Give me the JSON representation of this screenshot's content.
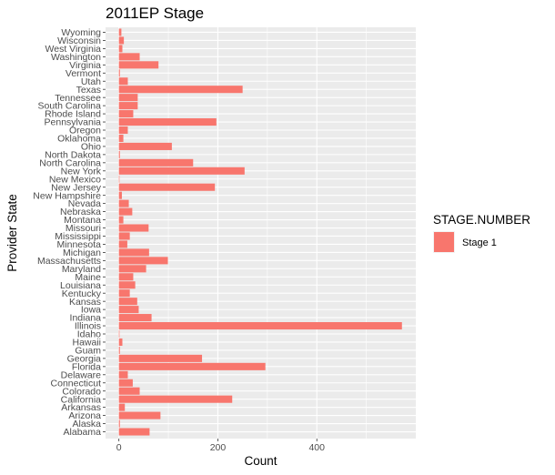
{
  "chart_data": {
    "type": "bar",
    "orientation": "horizontal",
    "title": "2011EP Stage",
    "xlabel": "Count",
    "ylabel": "Provider State",
    "xlim": [
      -27,
      600
    ],
    "xticks": [
      0,
      200,
      400
    ],
    "grid": true,
    "legend_position": "right",
    "legend_title": "STAGE.NUMBER",
    "series": [
      {
        "name": "Stage 1",
        "color": "#F8766D"
      }
    ],
    "categories": [
      "Alabama",
      "Alaska",
      "Arizona",
      "Arkansas",
      "California",
      "Colorado",
      "Connecticut",
      "Delaware",
      "Florida",
      "Georgia",
      "Guam",
      "Hawaii",
      "Idaho",
      "Illinois",
      "Indiana",
      "Iowa",
      "Kansas",
      "Kentucky",
      "Louisiana",
      "Maine",
      "Maryland",
      "Massachusetts",
      "Michigan",
      "Minnesota",
      "Mississippi",
      "Missouri",
      "Montana",
      "Nebraska",
      "Nevada",
      "New Hampshire",
      "New Jersey",
      "New Mexico",
      "New York",
      "North Carolina",
      "North Dakota",
      "Ohio",
      "Oklahoma",
      "Oregon",
      "Pennsylvania",
      "Rhode Island",
      "South Carolina",
      "Tennessee",
      "Texas",
      "Utah",
      "Vermont",
      "Virginia",
      "Washington",
      "West Virginia",
      "Wisconsin",
      "Wyoming"
    ],
    "values": [
      62,
      2,
      84,
      12,
      229,
      42,
      28,
      18,
      296,
      168,
      2,
      7,
      1,
      572,
      66,
      40,
      37,
      22,
      33,
      29,
      55,
      99,
      61,
      17,
      22,
      60,
      9,
      27,
      20,
      6,
      194,
      1,
      254,
      150,
      2,
      107,
      9,
      18,
      197,
      29,
      38,
      38,
      250,
      18,
      2,
      80,
      42,
      7,
      10,
      5
    ]
  }
}
